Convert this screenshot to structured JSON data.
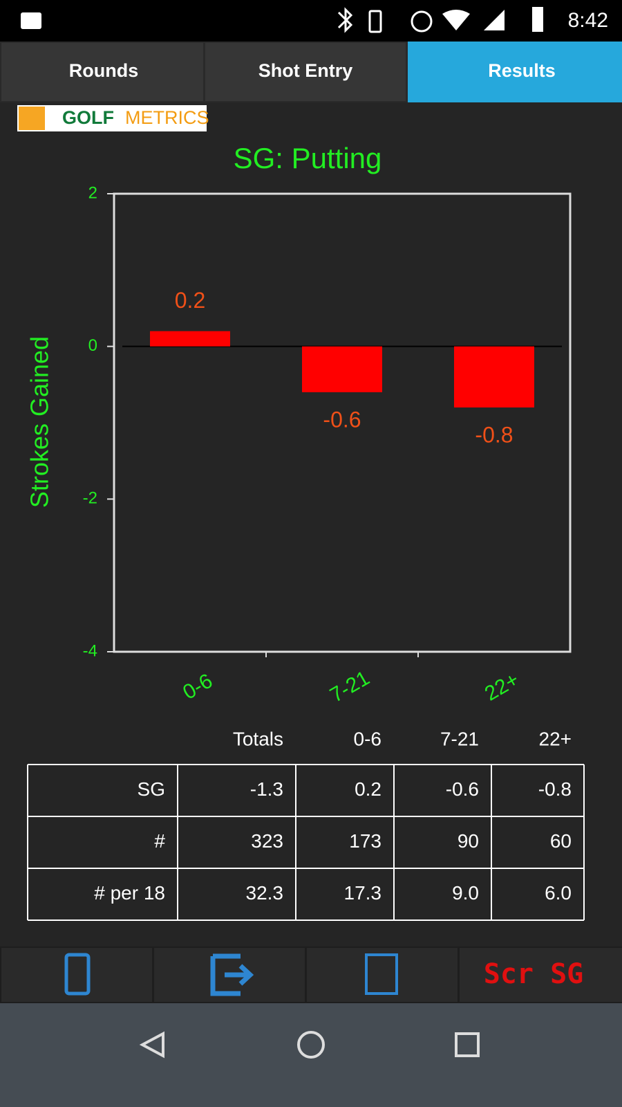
{
  "status_bar": {
    "time": "8:42"
  },
  "tabs": [
    "Rounds",
    "Shot Entry",
    "Results"
  ],
  "logo": {
    "golf": "GOLF",
    "metrics": "METRICS"
  },
  "chart_data": {
    "type": "bar",
    "title": "SG: Putting",
    "y_label": "Strokes Gained",
    "categories": [
      "0-6",
      "7-21",
      "22+"
    ],
    "values": [
      0.2,
      -0.6,
      -0.8
    ],
    "color": "#ff0000",
    "ylim": [
      -4,
      2
    ],
    "yticks": [
      -4,
      -2,
      0,
      2
    ]
  },
  "table": {
    "header": [
      "Totals",
      "0-6",
      "7-21",
      "22+"
    ],
    "rows": [
      [
        "SG",
        "-1.3",
        "0.2",
        "-0.6",
        "-0.8"
      ],
      [
        "#",
        "323",
        "173",
        "90",
        "60"
      ],
      [
        "# per 18",
        "32.3",
        "17.3",
        "9.0",
        "6.0"
      ]
    ]
  },
  "bottom_bar": {
    "button": "Scr SG"
  }
}
